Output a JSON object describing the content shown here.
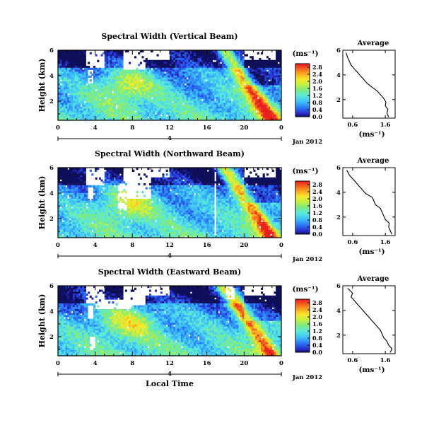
{
  "chart_data": [
    {
      "type": "heatmap",
      "title": "Spectral Width (Vertical Beam)",
      "ylabel": "Height (km)",
      "ylim": [
        0.5,
        6
      ],
      "yticks": [
        "2",
        "4",
        "6"
      ],
      "xticks": [
        "0",
        "4",
        "8",
        "12",
        "16",
        "20",
        "0"
      ],
      "xlim": [
        0,
        24
      ],
      "date_marker": "4",
      "date_label": "Jan 2012",
      "colorbar": {
        "unit": "(ms⁻¹)",
        "ticks": [
          "0.0",
          "0.4",
          "0.8",
          "1.2",
          "1.6",
          "2.0",
          "2.4",
          "2.8"
        ],
        "range": [
          0,
          3
        ]
      },
      "average_profile": {
        "title": "Average",
        "xlabel": "(ms⁻¹)",
        "xticks": [
          "0.6",
          "1.6"
        ],
        "yticks": [
          "2",
          "4",
          "6"
        ],
        "xlim": [
          0.3,
          1.9
        ],
        "ylim": [
          0.5,
          6
        ],
        "x": [
          1.7,
          1.65,
          1.68,
          1.6,
          1.62,
          1.55,
          1.45,
          1.35,
          1.2,
          1.05,
          0.95,
          0.85,
          0.75,
          0.65,
          0.55,
          0.5,
          0.45,
          0.4
        ],
        "height": [
          0.6,
          0.9,
          1.2,
          1.5,
          1.8,
          2.1,
          2.4,
          2.7,
          3.0,
          3.3,
          3.6,
          3.9,
          4.2,
          4.5,
          4.8,
          5.1,
          5.4,
          5.8
        ]
      }
    },
    {
      "type": "heatmap",
      "title": "Spectral Width (Northward Beam)",
      "ylabel": "Height (km)",
      "ylim": [
        0.5,
        6
      ],
      "yticks": [
        "2",
        "4",
        "6"
      ],
      "xticks": [
        "0",
        "4",
        "8",
        "12",
        "16",
        "20",
        "0"
      ],
      "xlim": [
        0,
        24
      ],
      "date_marker": "4",
      "date_label": "Jan 2012",
      "colorbar": {
        "unit": "(ms⁻¹)",
        "ticks": [
          "0.0",
          "0.4",
          "0.8",
          "1.2",
          "1.6",
          "2.0",
          "2.4",
          "2.8"
        ],
        "range": [
          0,
          3
        ]
      },
      "average_profile": {
        "title": "Average",
        "xlabel": "(ms⁻¹)",
        "xticks": [
          "0.6",
          "1.6"
        ],
        "yticks": [
          "2",
          "4",
          "6"
        ],
        "xlim": [
          0.3,
          1.9
        ],
        "ylim": [
          0.5,
          6
        ],
        "x": [
          1.8,
          1.75,
          1.7,
          1.72,
          1.6,
          1.55,
          1.5,
          1.45,
          1.3,
          1.25,
          1.2,
          1.0,
          0.9,
          0.8,
          0.7,
          0.6,
          0.5,
          0.42
        ],
        "height": [
          0.6,
          0.9,
          1.2,
          1.5,
          1.8,
          2.1,
          2.4,
          2.7,
          3.0,
          3.3,
          3.6,
          3.9,
          4.2,
          4.5,
          4.8,
          5.1,
          5.4,
          5.8
        ]
      }
    },
    {
      "type": "heatmap",
      "title": "Spectral Width (Eastward Beam)",
      "ylabel": "Height (km)",
      "ylim": [
        0.5,
        6
      ],
      "yticks": [
        "2",
        "4",
        "6"
      ],
      "xticks": [
        "0",
        "4",
        "8",
        "12",
        "16",
        "20",
        "0"
      ],
      "xlim": [
        0,
        24
      ],
      "date_marker": "4",
      "date_label": "Jan 2012",
      "xlabel": "Local Time",
      "colorbar": {
        "unit": "(ms⁻¹)",
        "ticks": [
          "0.0",
          "0.4",
          "0.8",
          "1.2",
          "1.6",
          "2.0",
          "2.4",
          "2.8"
        ],
        "range": [
          0,
          3
        ]
      },
      "average_profile": {
        "title": "Average",
        "xlabel": "(ms⁻¹)",
        "xticks": [
          "0.6",
          "1.6"
        ],
        "yticks": [
          "2",
          "4",
          "6"
        ],
        "xlim": [
          0.3,
          1.9
        ],
        "ylim": [
          0.5,
          6
        ],
        "x": [
          1.75,
          1.8,
          1.7,
          1.65,
          1.55,
          1.5,
          1.45,
          1.35,
          1.25,
          1.15,
          1.05,
          0.95,
          0.85,
          0.75,
          0.65,
          0.55,
          0.6,
          0.45
        ],
        "height": [
          0.6,
          0.9,
          1.2,
          1.5,
          1.8,
          2.1,
          2.4,
          2.7,
          3.0,
          3.3,
          3.6,
          3.9,
          4.2,
          4.5,
          4.8,
          5.1,
          5.4,
          5.8
        ]
      }
    }
  ]
}
